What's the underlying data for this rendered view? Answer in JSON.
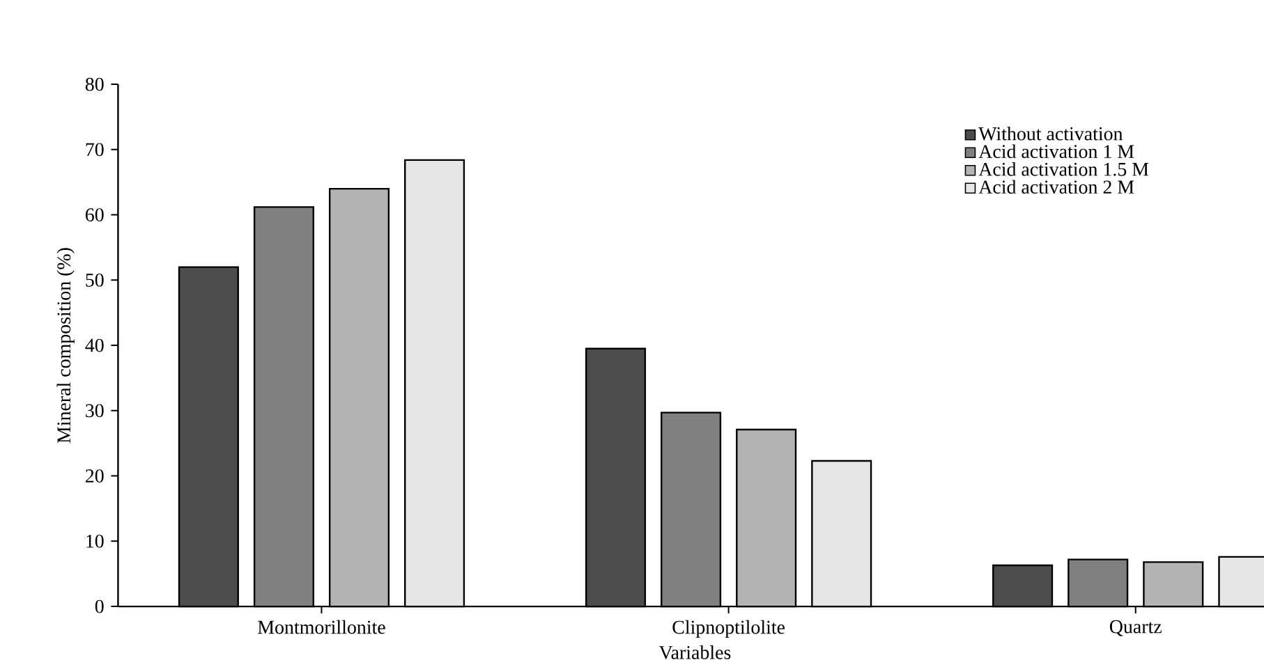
{
  "chart_data": {
    "type": "bar",
    "xlabel": "Variables",
    "ylabel": "Mineral composition (%)",
    "categories": [
      "Montmorillonite",
      "Clipnoptilolite",
      "Quartz"
    ],
    "series": [
      {
        "name": "Without activation",
        "color": "#4d4d4d",
        "values": [
          52,
          39.5,
          6.3
        ]
      },
      {
        "name": "Acid activation 1 M",
        "color": "#808080",
        "values": [
          61.2,
          29.7,
          7.2
        ]
      },
      {
        "name": "Acid activation 1.5 M",
        "color": "#b3b3b3",
        "values": [
          64,
          27.1,
          6.8
        ]
      },
      {
        "name": "Acid activation 2 M",
        "color": "#e6e6e6",
        "values": [
          68.4,
          22.3,
          7.6
        ]
      }
    ],
    "ylim": [
      0,
      80
    ],
    "yticks": [
      0,
      10,
      20,
      30,
      40,
      50,
      60,
      70,
      80
    ],
    "grid": false,
    "legend": "top right"
  }
}
